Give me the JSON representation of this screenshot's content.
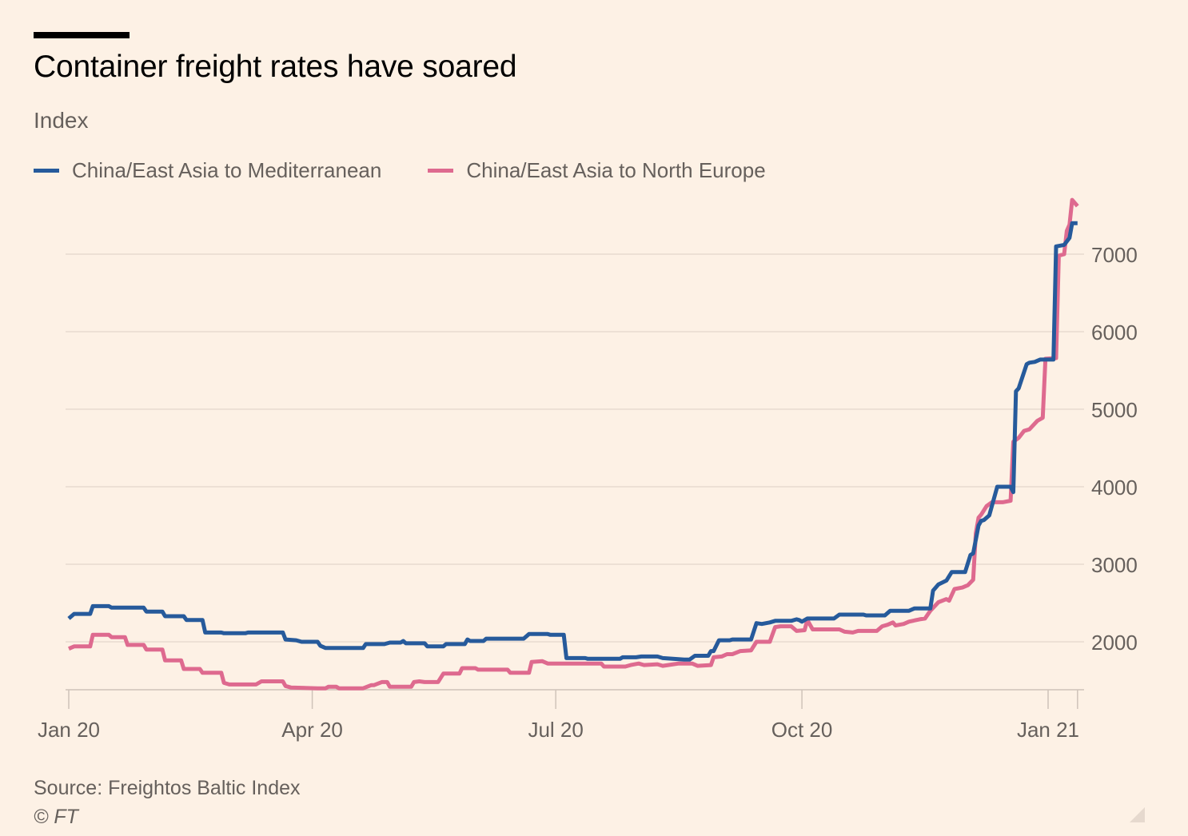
{
  "header": {
    "title": "Container freight rates have soared",
    "subtitle": "Index"
  },
  "footer": {
    "source": "Source: Freightos Baltic Index",
    "copyright": "© FT"
  },
  "colors": {
    "background": "#fdf1e5",
    "mediterranean": "#265a9b",
    "north_europe": "#de6a8f",
    "grid": "#e8dbd0",
    "text": "#66605c"
  },
  "chart_data": {
    "type": "line",
    "title": "Container freight rates have soared",
    "subtitle": "Index",
    "xlabel": "",
    "ylabel": "Index",
    "x_unit": "days since 2020-01-01",
    "x_range": [
      0,
      377
    ],
    "ylim": [
      1380,
      7800
    ],
    "y_ticks": [
      2000,
      3000,
      4000,
      5000,
      6000,
      7000
    ],
    "y_axis_side": "right",
    "grid": true,
    "x_ticks": [
      {
        "day": 0,
        "label": "Jan 20"
      },
      {
        "day": 91,
        "label": "Apr 20"
      },
      {
        "day": 182,
        "label": "Jul 20"
      },
      {
        "day": 274,
        "label": "Oct 20"
      },
      {
        "day": 366,
        "label": "Jan 21"
      },
      {
        "day": 377,
        "label": ""
      }
    ],
    "legend": "top-left",
    "series": [
      {
        "name": "China/East Asia to Mediterranean",
        "color": "#265a9b",
        "points": [
          [
            0,
            2300
          ],
          [
            2,
            2360
          ],
          [
            8,
            2360
          ],
          [
            9,
            2460
          ],
          [
            15,
            2460
          ],
          [
            16,
            2440
          ],
          [
            28,
            2440
          ],
          [
            29,
            2390
          ],
          [
            35,
            2390
          ],
          [
            36,
            2330
          ],
          [
            43,
            2330
          ],
          [
            44,
            2280
          ],
          [
            50,
            2280
          ],
          [
            51,
            2120
          ],
          [
            57,
            2120
          ],
          [
            58,
            2110
          ],
          [
            66,
            2110
          ],
          [
            67,
            2120
          ],
          [
            80,
            2120
          ],
          [
            81,
            2030
          ],
          [
            85,
            2020
          ],
          [
            87,
            2000
          ],
          [
            93,
            2000
          ],
          [
            94,
            1950
          ],
          [
            96,
            1920
          ],
          [
            110,
            1920
          ],
          [
            111,
            1970
          ],
          [
            118,
            1970
          ],
          [
            120,
            1990
          ],
          [
            124,
            1990
          ],
          [
            125,
            2010
          ],
          [
            126,
            1980
          ],
          [
            133,
            1980
          ],
          [
            134,
            1940
          ],
          [
            140,
            1940
          ],
          [
            141,
            1970
          ],
          [
            148,
            1970
          ],
          [
            149,
            2030
          ],
          [
            150,
            2010
          ],
          [
            155,
            2010
          ],
          [
            156,
            2040
          ],
          [
            170,
            2040
          ],
          [
            172,
            2100
          ],
          [
            179,
            2100
          ],
          [
            180,
            2090
          ],
          [
            185,
            2090
          ],
          [
            186,
            1790
          ],
          [
            193,
            1790
          ],
          [
            194,
            1780
          ],
          [
            206,
            1780
          ],
          [
            207,
            1800
          ],
          [
            212,
            1800
          ],
          [
            214,
            1810
          ],
          [
            220,
            1810
          ],
          [
            222,
            1790
          ],
          [
            230,
            1770
          ],
          [
            232,
            1770
          ],
          [
            234,
            1820
          ],
          [
            239,
            1820
          ],
          [
            240,
            1880
          ],
          [
            241,
            1880
          ],
          [
            243,
            2020
          ],
          [
            247,
            2020
          ],
          [
            248,
            2030
          ],
          [
            255,
            2030
          ],
          [
            257,
            2240
          ],
          [
            259,
            2230
          ],
          [
            262,
            2250
          ],
          [
            264,
            2270
          ],
          [
            270,
            2270
          ],
          [
            272,
            2290
          ],
          [
            273,
            2280
          ],
          [
            274,
            2260
          ],
          [
            276,
            2300
          ],
          [
            286,
            2300
          ],
          [
            288,
            2350
          ],
          [
            297,
            2350
          ],
          [
            298,
            2340
          ],
          [
            305,
            2340
          ],
          [
            307,
            2400
          ],
          [
            314,
            2400
          ],
          [
            316,
            2430
          ],
          [
            322,
            2430
          ],
          [
            323,
            2660
          ],
          [
            325,
            2740
          ],
          [
            328,
            2790
          ],
          [
            330,
            2900
          ],
          [
            335,
            2900
          ],
          [
            337,
            3120
          ],
          [
            338,
            3140
          ],
          [
            340,
            3500
          ],
          [
            341,
            3560
          ],
          [
            342,
            3570
          ],
          [
            344,
            3630
          ],
          [
            347,
            4000
          ],
          [
            352,
            4000
          ],
          [
            353,
            3930
          ],
          [
            354,
            5230
          ],
          [
            355,
            5270
          ],
          [
            358,
            5580
          ],
          [
            359,
            5600
          ],
          [
            361,
            5610
          ],
          [
            363,
            5640
          ],
          [
            368,
            5640
          ],
          [
            369,
            7100
          ],
          [
            372,
            7120
          ],
          [
            374,
            7210
          ],
          [
            375,
            7400
          ],
          [
            377,
            7400
          ]
        ]
      },
      {
        "name": "China/East Asia to North Europe",
        "color": "#de6a8f",
        "points": [
          [
            0,
            1910
          ],
          [
            2,
            1940
          ],
          [
            8,
            1940
          ],
          [
            9,
            2090
          ],
          [
            15,
            2090
          ],
          [
            16,
            2060
          ],
          [
            21,
            2060
          ],
          [
            22,
            1960
          ],
          [
            28,
            1960
          ],
          [
            29,
            1900
          ],
          [
            35,
            1900
          ],
          [
            36,
            1760
          ],
          [
            42,
            1760
          ],
          [
            43,
            1650
          ],
          [
            49,
            1650
          ],
          [
            50,
            1600
          ],
          [
            57,
            1600
          ],
          [
            58,
            1470
          ],
          [
            60,
            1450
          ],
          [
            70,
            1450
          ],
          [
            72,
            1490
          ],
          [
            80,
            1490
          ],
          [
            81,
            1430
          ],
          [
            83,
            1410
          ],
          [
            93,
            1400
          ],
          [
            96,
            1400
          ],
          [
            97,
            1420
          ],
          [
            100,
            1420
          ],
          [
            101,
            1400
          ],
          [
            110,
            1400
          ],
          [
            113,
            1440
          ],
          [
            114,
            1440
          ],
          [
            117,
            1480
          ],
          [
            119,
            1480
          ],
          [
            120,
            1420
          ],
          [
            128,
            1420
          ],
          [
            129,
            1480
          ],
          [
            131,
            1490
          ],
          [
            133,
            1480
          ],
          [
            138,
            1480
          ],
          [
            140,
            1590
          ],
          [
            146,
            1590
          ],
          [
            147,
            1660
          ],
          [
            152,
            1660
          ],
          [
            153,
            1640
          ],
          [
            164,
            1640
          ],
          [
            165,
            1600
          ],
          [
            172,
            1600
          ],
          [
            173,
            1740
          ],
          [
            177,
            1750
          ],
          [
            179,
            1720
          ],
          [
            199,
            1720
          ],
          [
            200,
            1680
          ],
          [
            208,
            1680
          ],
          [
            210,
            1700
          ],
          [
            213,
            1720
          ],
          [
            215,
            1700
          ],
          [
            220,
            1710
          ],
          [
            222,
            1690
          ],
          [
            226,
            1710
          ],
          [
            228,
            1720
          ],
          [
            233,
            1720
          ],
          [
            235,
            1690
          ],
          [
            240,
            1700
          ],
          [
            241,
            1800
          ],
          [
            244,
            1810
          ],
          [
            246,
            1840
          ],
          [
            248,
            1840
          ],
          [
            251,
            1880
          ],
          [
            255,
            1890
          ],
          [
            257,
            2000
          ],
          [
            262,
            2000
          ],
          [
            264,
            2190
          ],
          [
            266,
            2200
          ],
          [
            270,
            2200
          ],
          [
            272,
            2140
          ],
          [
            275,
            2150
          ],
          [
            276,
            2280
          ],
          [
            278,
            2160
          ],
          [
            288,
            2160
          ],
          [
            290,
            2130
          ],
          [
            293,
            2120
          ],
          [
            295,
            2140
          ],
          [
            302,
            2140
          ],
          [
            304,
            2200
          ],
          [
            306,
            2220
          ],
          [
            308,
            2250
          ],
          [
            309,
            2210
          ],
          [
            312,
            2230
          ],
          [
            314,
            2260
          ],
          [
            318,
            2290
          ],
          [
            320,
            2300
          ],
          [
            322,
            2400
          ],
          [
            325,
            2510
          ],
          [
            328,
            2550
          ],
          [
            329,
            2530
          ],
          [
            331,
            2680
          ],
          [
            334,
            2700
          ],
          [
            336,
            2730
          ],
          [
            338,
            2800
          ],
          [
            339,
            3400
          ],
          [
            340,
            3600
          ],
          [
            341,
            3640
          ],
          [
            343,
            3750
          ],
          [
            345,
            3800
          ],
          [
            349,
            3800
          ],
          [
            352,
            3820
          ],
          [
            353,
            4580
          ],
          [
            355,
            4630
          ],
          [
            357,
            4720
          ],
          [
            359,
            4740
          ],
          [
            362,
            4850
          ],
          [
            364,
            4890
          ],
          [
            365,
            5650
          ],
          [
            369,
            5660
          ],
          [
            370,
            6980
          ],
          [
            372,
            7000
          ],
          [
            373,
            7300
          ],
          [
            374,
            7380
          ],
          [
            375,
            7700
          ],
          [
            377,
            7620
          ]
        ]
      }
    ]
  }
}
